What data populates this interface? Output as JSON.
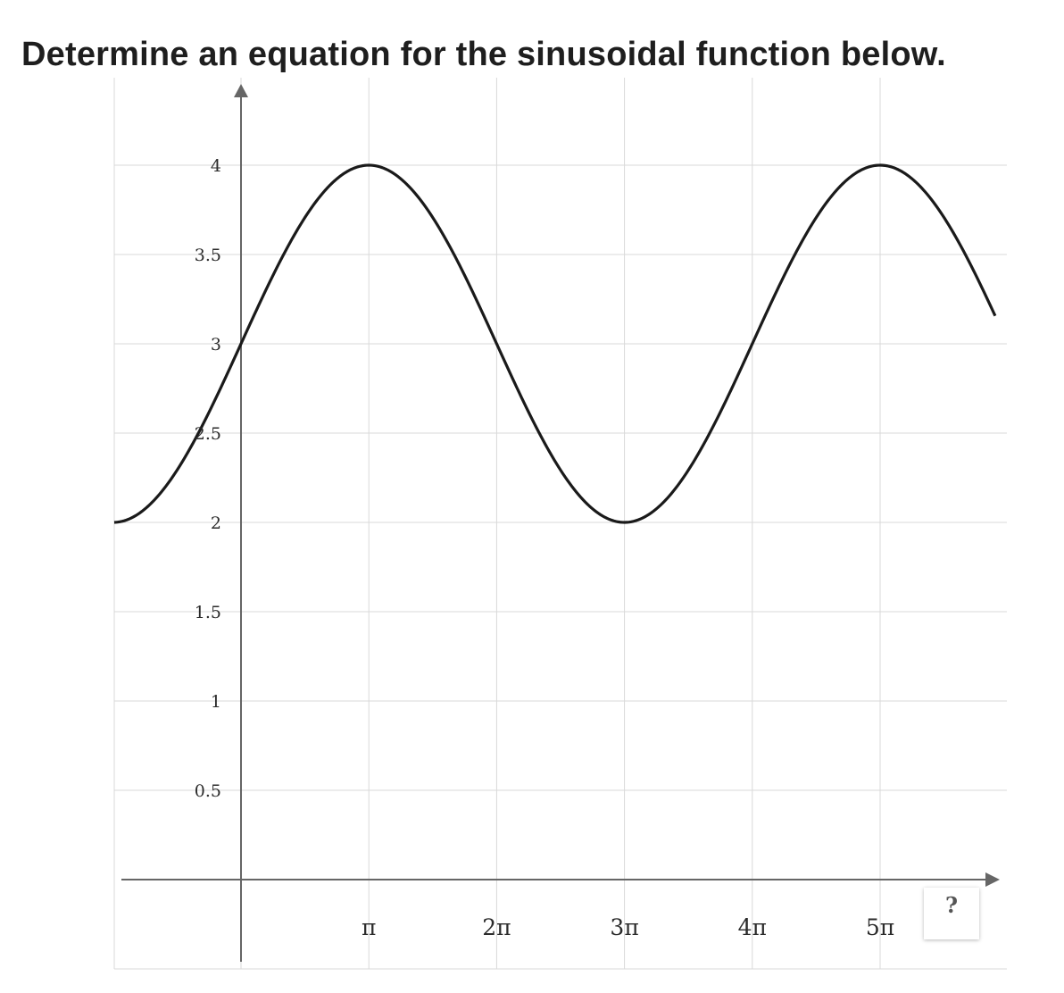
{
  "question": "Determine an equation for the sinusoidal function below.",
  "help_button_label": "?",
  "chart_data": {
    "type": "line",
    "title": "",
    "xlabel": "",
    "ylabel": "",
    "xlim": [
      "-π",
      "5.9π"
    ],
    "ylim": [
      0,
      4.5
    ],
    "grid": true,
    "y_ticks": [
      {
        "value": 0.5,
        "label": "0.5"
      },
      {
        "value": 1,
        "label": "1"
      },
      {
        "value": 1.5,
        "label": "1.5"
      },
      {
        "value": 2,
        "label": "2"
      },
      {
        "value": 2.5,
        "label": "2.5"
      },
      {
        "value": 3,
        "label": "3"
      },
      {
        "value": 3.5,
        "label": "3.5"
      },
      {
        "value": 4,
        "label": "4"
      }
    ],
    "x_ticks": [
      {
        "value": 1,
        "label": "π"
      },
      {
        "value": 2,
        "label": "2π"
      },
      {
        "value": 3,
        "label": "3π"
      },
      {
        "value": 4,
        "label": "4π"
      },
      {
        "value": 5,
        "label": "5π"
      }
    ],
    "x_unit": "π",
    "series": [
      {
        "function": "y = sin(x/2) + 3",
        "x_range": [
          "-π",
          "5.9π"
        ],
        "color": "#1a1a1a",
        "points": [
          {
            "x": "-π",
            "y": 2
          },
          {
            "x": "0",
            "y": 3
          },
          {
            "x": "π",
            "y": 4
          },
          {
            "x": "2π",
            "y": 3
          },
          {
            "x": "3π",
            "y": 2
          },
          {
            "x": "4π",
            "y": 3
          },
          {
            "x": "5π",
            "y": 4
          },
          {
            "x": "5.9π",
            "y": 3.16
          }
        ]
      }
    ],
    "colors": {
      "grid": "#d9d9d9",
      "axis": "#666666",
      "curve": "#1a1a1a"
    }
  }
}
